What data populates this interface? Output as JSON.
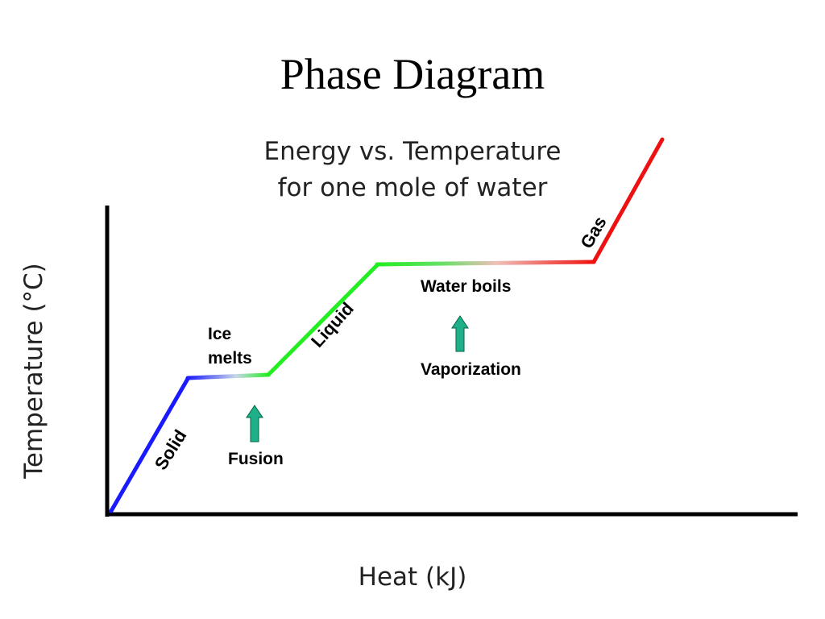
{
  "header": {
    "title": "Phase Diagram"
  },
  "diagram": {
    "title_lines": [
      "Energy vs. Temperature",
      "for one mole of water"
    ],
    "y_axis_label": "Temperature (°C)",
    "x_axis_label": "Heat (kJ)",
    "phase_labels": [
      "Solid",
      "Liquid",
      "Gas"
    ],
    "annotations": {
      "ice_melts": [
        "Ice",
        "melts"
      ],
      "fusion": "Fusion",
      "water_boils": "Water boils",
      "vaporization": "Vaporization"
    }
  }
}
